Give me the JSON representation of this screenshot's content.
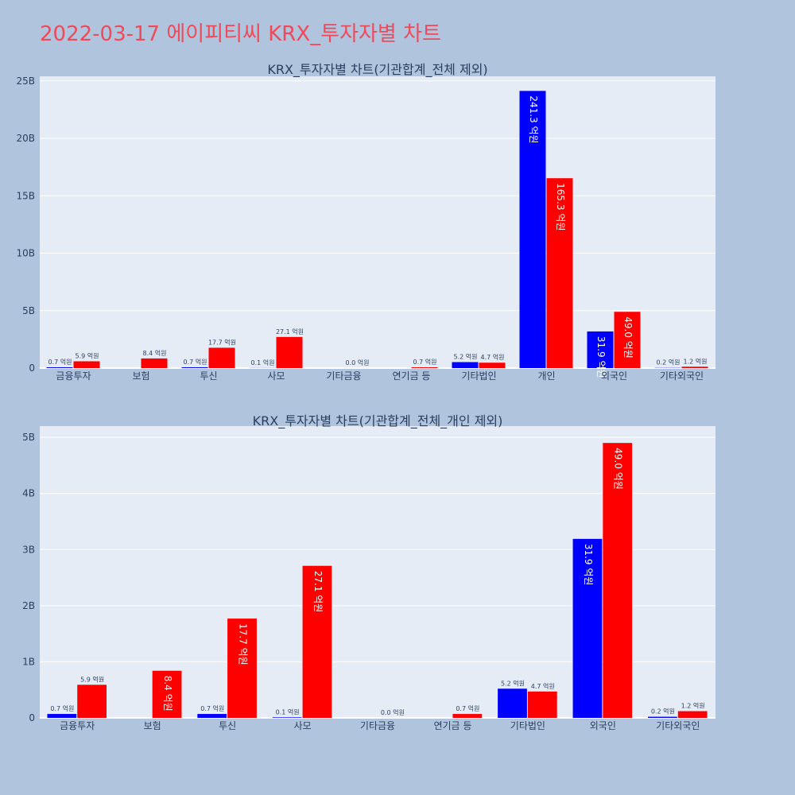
{
  "page": {
    "title": "2022-03-17 에이피티씨 KRX_투자자별 차트"
  },
  "colors": {
    "background": "#b0c4de",
    "plot_bg": "#e5ecf6",
    "grid": "#ffffff",
    "title": "#ef4a5a",
    "series_blue": "#0000ff",
    "series_red": "#ff0000"
  },
  "chart_data": [
    {
      "type": "bar",
      "title": "KRX_투자자별 차트(기관합계_전체 제외)",
      "categories": [
        "금융투자",
        "보험",
        "투신",
        "사모",
        "기타금융",
        "연기금 등",
        "기타법인",
        "개인",
        "외국인",
        "기타외국인"
      ],
      "yticks": [
        "0",
        "5B",
        "10B",
        "15B",
        "20B",
        "25B"
      ],
      "ylim": [
        0,
        25.4
      ],
      "grid": true,
      "series": [
        {
          "color": "#0000ff",
          "values": [
            0.07,
            0,
            0.07,
            0.01,
            0,
            0,
            0.52,
            24.13,
            3.19,
            0.02
          ],
          "labels": [
            "0.7 억원",
            "",
            "0.7 억원",
            "0.1 억원",
            "",
            "",
            "5.2 억원",
            "241.3 억원",
            "31.9 억원",
            "0.2 억원"
          ]
        },
        {
          "color": "#ff0000",
          "values": [
            0.59,
            0.84,
            1.77,
            2.71,
            0.0,
            0.07,
            0.47,
            16.53,
            4.9,
            0.12
          ],
          "labels": [
            "5.9 억원",
            "8.4 억원",
            "17.7 억원",
            "27.1 억원",
            "0.0 억원",
            "0.7 억원",
            "4.7 억원",
            "165.3 억원",
            "49.0 억원",
            "1.2 억원"
          ]
        }
      ]
    },
    {
      "type": "bar",
      "title": "KRX_투자자별 차트(기관합계_전체_개인 제외)",
      "categories": [
        "금융투자",
        "보험",
        "투신",
        "사모",
        "기타금융",
        "연기금 등",
        "기타법인",
        "외국인",
        "기타외국인"
      ],
      "yticks": [
        "0",
        "1B",
        "2B",
        "3B",
        "4B",
        "5B"
      ],
      "ylim": [
        0,
        5.2
      ],
      "grid": true,
      "series": [
        {
          "color": "#0000ff",
          "values": [
            0.07,
            0,
            0.07,
            0.01,
            0,
            0,
            0.52,
            3.19,
            0.02
          ],
          "labels": [
            "0.7 억원",
            "",
            "0.7 억원",
            "0.1 억원",
            "",
            "",
            "5.2 억원",
            "31.9 억원",
            "0.2 억원"
          ]
        },
        {
          "color": "#ff0000",
          "values": [
            0.59,
            0.84,
            1.77,
            2.71,
            0.0,
            0.07,
            0.47,
            4.9,
            0.12
          ],
          "labels": [
            "5.9 억원",
            "8.4 억원",
            "17.7 억원",
            "27.1 억원",
            "0.0 억원",
            "0.7 억원",
            "4.7 억원",
            "49.0 억원",
            "1.2 억원"
          ]
        }
      ]
    }
  ]
}
